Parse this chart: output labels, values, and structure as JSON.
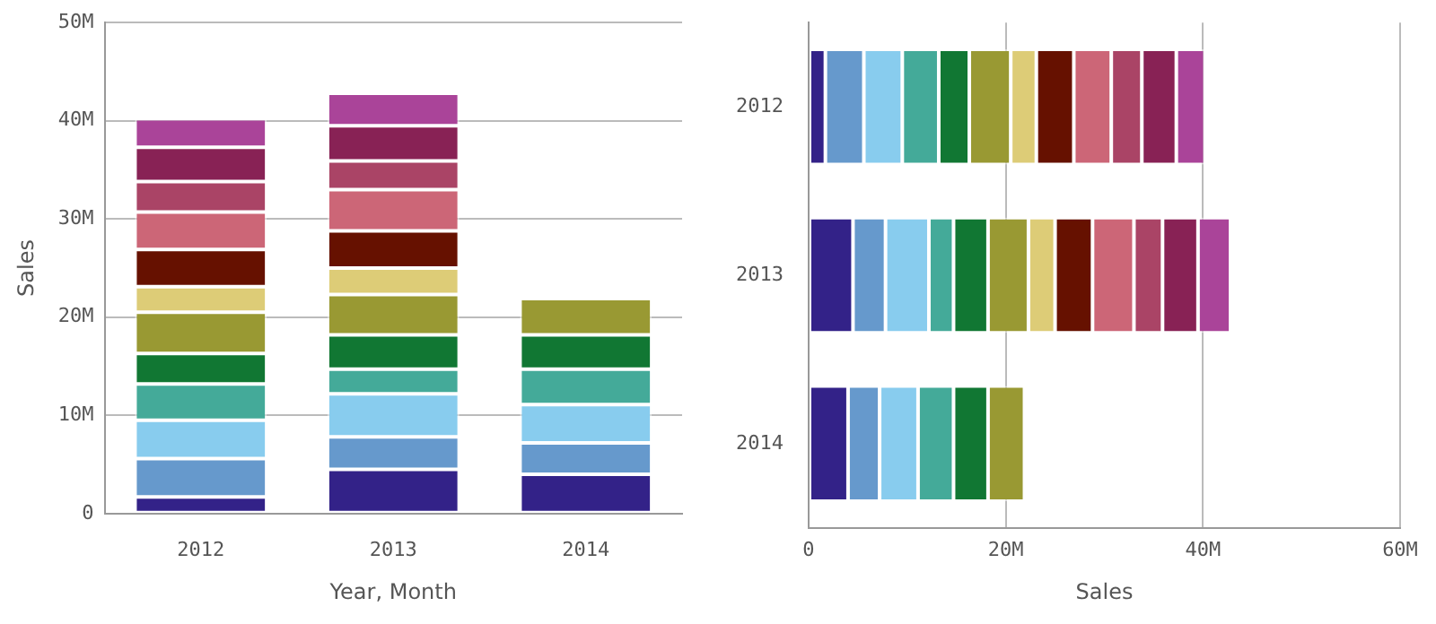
{
  "chart_data": [
    {
      "type": "bar",
      "stacked": true,
      "xlabel": "Year, Month",
      "ylabel": "Sales",
      "categories": [
        "2012",
        "2013",
        "2014"
      ],
      "ylim": [
        0,
        50
      ],
      "yticks": [
        {
          "value": 0,
          "label": "0"
        },
        {
          "value": 10,
          "label": "10M"
        },
        {
          "value": 20,
          "label": "20M"
        },
        {
          "value": 30,
          "label": "30M"
        },
        {
          "value": 40,
          "label": "40M"
        },
        {
          "value": 50,
          "label": "50M"
        }
      ],
      "grid": "y",
      "legend": false,
      "series": [
        {
          "color": "#332288",
          "values": [
            1.7,
            4.5,
            4.0
          ]
        },
        {
          "color": "#6699cc",
          "values": [
            3.9,
            3.3,
            3.2
          ]
        },
        {
          "color": "#88ccee",
          "values": [
            3.9,
            4.4,
            3.9
          ]
        },
        {
          "color": "#44aa99",
          "values": [
            3.7,
            2.5,
            3.6
          ]
        },
        {
          "color": "#117733",
          "values": [
            3.1,
            3.5,
            3.5
          ]
        },
        {
          "color": "#999933",
          "values": [
            4.2,
            4.1,
            3.7
          ]
        },
        {
          "color": "#ddcc77",
          "values": [
            2.6,
            2.7,
            null
          ]
        },
        {
          "color": "#661100",
          "values": [
            3.8,
            3.8,
            null
          ]
        },
        {
          "color": "#cc6677",
          "values": [
            3.8,
            4.2,
            null
          ]
        },
        {
          "color": "#aa4466",
          "values": [
            3.1,
            2.9,
            null
          ]
        },
        {
          "color": "#882255",
          "values": [
            3.5,
            3.6,
            null
          ]
        },
        {
          "color": "#aa4499",
          "values": [
            2.9,
            3.3,
            null
          ]
        }
      ]
    },
    {
      "type": "bar",
      "stacked": true,
      "orientation": "horizontal",
      "xlabel": "Sales",
      "categories": [
        "2012",
        "2013",
        "2014"
      ],
      "xlim": [
        0,
        60
      ],
      "xticks": [
        {
          "value": 0,
          "label": "0"
        },
        {
          "value": 20,
          "label": "20M"
        },
        {
          "value": 40,
          "label": "40M"
        },
        {
          "value": 60,
          "label": "60M"
        }
      ],
      "grid": "x",
      "legend": false,
      "series": [
        {
          "color": "#332288",
          "values": [
            1.7,
            4.5,
            4.0
          ]
        },
        {
          "color": "#6699cc",
          "values": [
            3.9,
            3.3,
            3.2
          ]
        },
        {
          "color": "#88ccee",
          "values": [
            3.9,
            4.4,
            3.9
          ]
        },
        {
          "color": "#44aa99",
          "values": [
            3.7,
            2.5,
            3.6
          ]
        },
        {
          "color": "#117733",
          "values": [
            3.1,
            3.5,
            3.5
          ]
        },
        {
          "color": "#999933",
          "values": [
            4.2,
            4.1,
            3.7
          ]
        },
        {
          "color": "#ddcc77",
          "values": [
            2.6,
            2.7,
            null
          ]
        },
        {
          "color": "#661100",
          "values": [
            3.8,
            3.8,
            null
          ]
        },
        {
          "color": "#cc6677",
          "values": [
            3.8,
            4.2,
            null
          ]
        },
        {
          "color": "#aa4466",
          "values": [
            3.1,
            2.9,
            null
          ]
        },
        {
          "color": "#882255",
          "values": [
            3.5,
            3.6,
            null
          ]
        },
        {
          "color": "#aa4499",
          "values": [
            2.9,
            3.3,
            null
          ]
        }
      ]
    }
  ]
}
